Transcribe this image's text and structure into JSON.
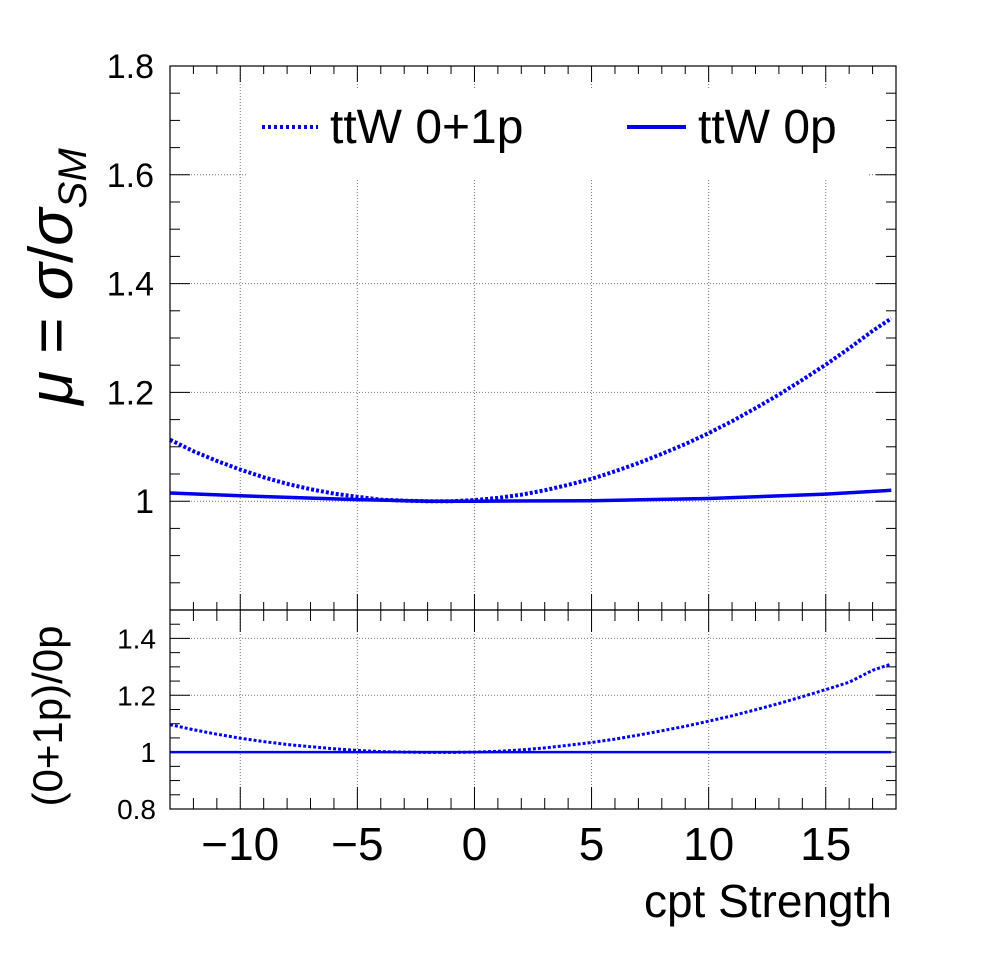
{
  "chart_data": [
    {
      "panel": "main",
      "type": "line",
      "ylabel": {
        "mu": "μ",
        "eq": " = ",
        "sigma": "σ",
        "slash": "/",
        "sigma2": "σ",
        "sub": "SM"
      },
      "xlim": [
        -13,
        18
      ],
      "ylim": [
        0.8,
        1.8
      ],
      "y_ticks": [
        "1",
        "1.2",
        "1.4",
        "1.6",
        "1.8"
      ],
      "grid": true,
      "legend_position": "top",
      "series": [
        {
          "name": "ttW 0+1p",
          "style": "dotted",
          "color": "#0000ee",
          "x": [
            -13,
            -12,
            -11,
            -10,
            -9,
            -8,
            -7,
            -6,
            -5,
            -4,
            -3,
            -2,
            -1,
            0,
            1,
            2,
            3,
            4,
            5,
            6,
            7,
            8,
            9,
            10,
            11,
            12,
            13,
            14,
            15,
            16,
            17,
            17.8
          ],
          "y": [
            1.113,
            1.092,
            1.074,
            1.058,
            1.044,
            1.032,
            1.022,
            1.014,
            1.008,
            1.003,
            1.001,
            1.0,
            1.0,
            1.002,
            1.006,
            1.012,
            1.02,
            1.03,
            1.041,
            1.055,
            1.07,
            1.087,
            1.105,
            1.125,
            1.147,
            1.171,
            1.196,
            1.223,
            1.251,
            1.281,
            1.313,
            1.336
          ]
        },
        {
          "name": "ttW 0p",
          "style": "solid",
          "color": "#0000ee",
          "x": [
            -13,
            -10,
            -5,
            -2,
            0,
            5,
            10,
            15,
            17.8
          ],
          "y": [
            1.015,
            1.01,
            1.003,
            1.0,
            1.0,
            1.001,
            1.005,
            1.013,
            1.02
          ]
        }
      ]
    },
    {
      "panel": "ratio",
      "type": "line",
      "xlabel": "cpt Strength",
      "ylabel": "(0+1p)/0p",
      "xlim": [
        -13,
        18
      ],
      "ylim": [
        0.8,
        1.5
      ],
      "x_ticks": [
        "−10",
        "−5",
        "0",
        "5",
        "10",
        "15"
      ],
      "y_ticks": [
        "0.8",
        "1",
        "1.2",
        "1.4"
      ],
      "grid": true,
      "series": [
        {
          "name": "",
          "style": "dotted",
          "color": "#0000ee",
          "x": [
            -13,
            -12,
            -11,
            -10,
            -9,
            -8,
            -7,
            -6,
            -5,
            -4,
            -3,
            -2,
            -1,
            0,
            1,
            2,
            3,
            4,
            5,
            6,
            7,
            8,
            9,
            10,
            11,
            12,
            13,
            14,
            15,
            16,
            17,
            17.8
          ],
          "y": [
            1.097,
            1.079,
            1.063,
            1.049,
            1.037,
            1.027,
            1.019,
            1.012,
            1.006,
            1.002,
            1.0,
            0.999,
            0.999,
            1.0,
            1.003,
            1.008,
            1.015,
            1.024,
            1.034,
            1.046,
            1.06,
            1.075,
            1.091,
            1.109,
            1.128,
            1.149,
            1.171,
            1.195,
            1.22,
            1.246,
            1.288,
            1.31
          ]
        },
        {
          "name": "",
          "style": "solid",
          "color": "#0000ee",
          "x": [
            -13,
            17.8
          ],
          "y": [
            1.0,
            1.0
          ]
        }
      ]
    }
  ]
}
